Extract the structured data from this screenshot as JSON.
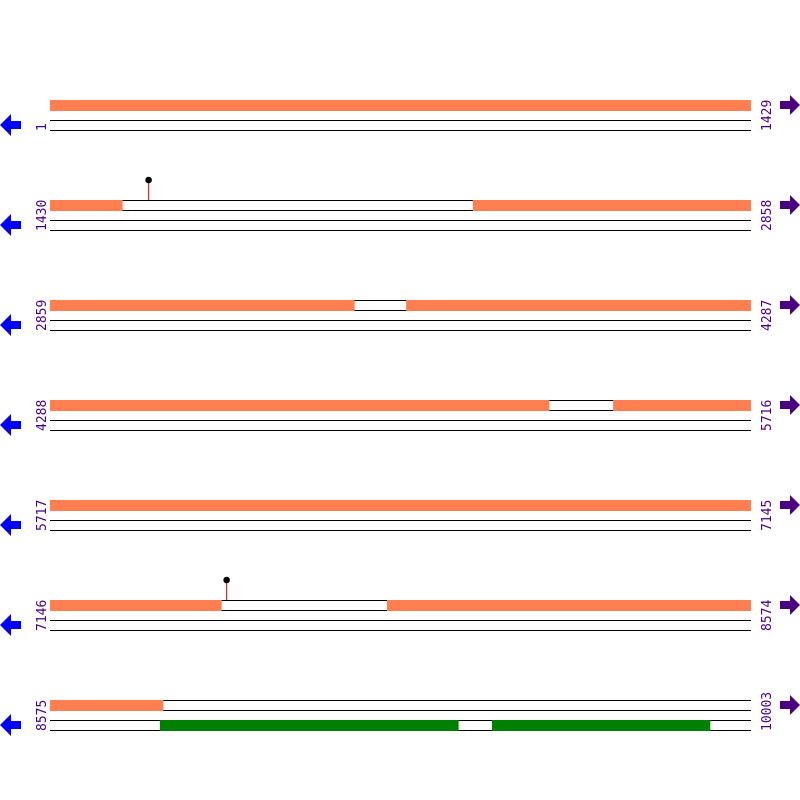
{
  "colors": {
    "forward_feature": "#ff7f50",
    "reverse_feature": "#008000",
    "track_line": "#000000",
    "label": "#4b0082",
    "left_arrow": "#0000ff",
    "right_arrow": "#4b0082",
    "lollipop_stem": "#ff0000",
    "lollipop_head": "#000000"
  },
  "icons": {
    "left": "arrow-left-icon",
    "right": "arrow-right-icon"
  },
  "bp_per_row": 1429,
  "rows": [
    {
      "start": 1,
      "end": 1429,
      "start_label": "1",
      "end_label": "1429",
      "forward": [
        [
          1,
          1429
        ]
      ],
      "reverse": [],
      "lollipops": []
    },
    {
      "start": 1430,
      "end": 2858,
      "start_label": "1430",
      "end_label": "2858",
      "forward": [
        [
          1430,
          1577
        ],
        [
          2292,
          2858
        ]
      ],
      "reverse": [],
      "lollipops": [
        1630
      ]
    },
    {
      "start": 2859,
      "end": 4287,
      "start_label": "2859",
      "end_label": "4287",
      "forward": [
        [
          2859,
          3479
        ],
        [
          3585,
          4287
        ]
      ],
      "reverse": [],
      "lollipops": []
    },
    {
      "start": 4288,
      "end": 5716,
      "start_label": "4288",
      "end_label": "5716",
      "forward": [
        [
          4288,
          5305
        ],
        [
          5436,
          5716
        ]
      ],
      "reverse": [],
      "lollipops": []
    },
    {
      "start": 5717,
      "end": 7145,
      "start_label": "5717",
      "end_label": "7145",
      "forward": [
        [
          5717,
          7145
        ]
      ],
      "reverse": [],
      "lollipops": []
    },
    {
      "start": 7146,
      "end": 8574,
      "start_label": "7146",
      "end_label": "8574",
      "forward": [
        [
          7146,
          7495
        ],
        [
          7833,
          8574
        ]
      ],
      "reverse": [],
      "lollipops": [
        7505
      ]
    },
    {
      "start": 8575,
      "end": 10003,
      "start_label": "8575",
      "end_label": "10003",
      "forward": [
        [
          8575,
          8805
        ]
      ],
      "reverse": [
        [
          8799,
          9407
        ],
        [
          9476,
          9920
        ]
      ],
      "lollipops": []
    }
  ]
}
